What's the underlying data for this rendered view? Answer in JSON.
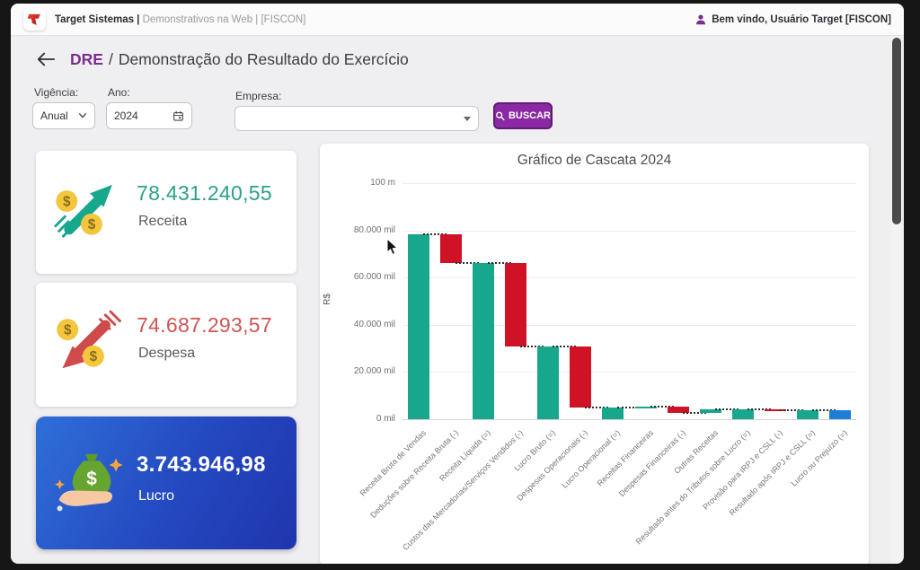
{
  "window": {
    "top_bar": {
      "brand_bold": "Target Sistemas |",
      "brand_rest": " Demonstrativos na Web | [FISCON]",
      "welcome": "Bem vindo, Usuário Target [FISCON]",
      "icons": [
        "target-logo",
        "user-icon"
      ]
    },
    "header": {
      "title_primary": "DRE",
      "title_separator": "/",
      "title_rest": "Demonstração do Resultado do Exercício"
    },
    "filters": {
      "vigencia": {
        "label": "Vigência:",
        "value": "Anual"
      },
      "ano": {
        "label": "Ano:",
        "value": "2024"
      },
      "empresa": {
        "label": "Empresa:",
        "value": ""
      },
      "buscar_label": "BUSCAR"
    },
    "cards": {
      "receita": {
        "value": "78.431.240,55",
        "label": "Receita",
        "value_color": "#2aa188",
        "icon": "arrow-up-coins-icon"
      },
      "despesa": {
        "value": "74.687.293,57",
        "label": "Despesa",
        "value_color": "#d05454",
        "icon": "arrow-down-coins-icon"
      },
      "lucro": {
        "value": "3.743.946,98",
        "label": "Lucro",
        "gradient_start": "#2f6fd8",
        "gradient_end": "#1f35ad",
        "icon": "hand-money-bag-icon"
      }
    },
    "accent_colors": {
      "purple": "#7b2e8f",
      "button_purple": "#8b28a3"
    }
  },
  "chart_data": {
    "type": "bar",
    "subtype": "waterfall",
    "title": "Gráfico de Cascata 2024",
    "ylabel": "R$",
    "unit": "R$ mil (thousands)",
    "ylim": [
      0,
      100000
    ],
    "grid": true,
    "legend": "none",
    "y_ticks": [
      {
        "label": "100 m",
        "v": 100000
      },
      {
        "label": "80.000 mil",
        "v": 80000
      },
      {
        "label": "60.000 mil",
        "v": 60000
      },
      {
        "label": "40.000 mil",
        "v": 40000
      },
      {
        "label": "20.000 mil",
        "v": 20000
      },
      {
        "label": "0 mil",
        "v": 0
      }
    ],
    "colors": {
      "teal": "#17a78c",
      "red": "#d01226",
      "blue": "#1e7ed7"
    },
    "bars": [
      {
        "label": "Receita Bruta de Vendas",
        "start": 0,
        "end": 78431,
        "color": "teal"
      },
      {
        "label": "Deduções sobre Receita Bruta (-)",
        "start": 78431,
        "end": 66231,
        "color": "red"
      },
      {
        "label": "Receita Líquida (=)",
        "start": 0,
        "end": 66231,
        "color": "teal"
      },
      {
        "label": "Custos das Mercadorias/Serviços Vendidos (-)",
        "start": 66231,
        "end": 30831,
        "color": "red"
      },
      {
        "label": "Lucro Bruto (=)",
        "start": 0,
        "end": 30831,
        "color": "teal"
      },
      {
        "label": "Despesas Operacionais (-)",
        "start": 30831,
        "end": 4931,
        "color": "red"
      },
      {
        "label": "Lucro Operacional (=)",
        "start": 0,
        "end": 4931,
        "color": "teal"
      },
      {
        "label": "Receitas Financeiras",
        "start": 4931,
        "end": 5181,
        "color": "teal"
      },
      {
        "label": "Despesas Financeiras (-)",
        "start": 5181,
        "end": 2631,
        "color": "red"
      },
      {
        "label": "Outras Receitas",
        "start": 2631,
        "end": 4244,
        "color": "teal"
      },
      {
        "label": "Resultado antes do Tributos sobre Lucro (=)",
        "start": 0,
        "end": 4244,
        "color": "teal"
      },
      {
        "label": "Provisão para IRPJ e CSLL (-)",
        "start": 4244,
        "end": 3744,
        "color": "red"
      },
      {
        "label": "Resultado após IRPJ e CSLL (=)",
        "start": 0,
        "end": 3744,
        "color": "teal"
      },
      {
        "label": "Lucro ou Prejuízo (=)",
        "start": 0,
        "end": 3744,
        "color": "blue"
      }
    ]
  }
}
